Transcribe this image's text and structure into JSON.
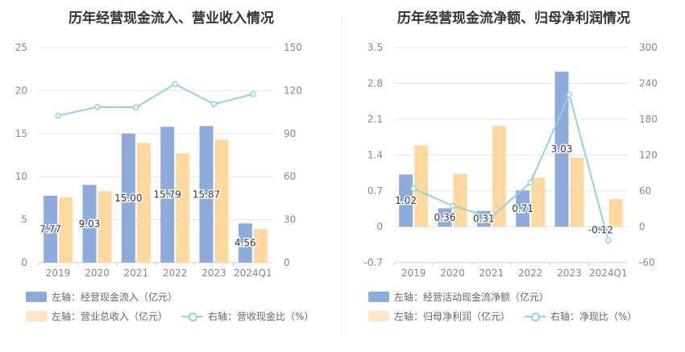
{
  "chart_data": [
    {
      "type": "bar",
      "title": "历年经营现金流入、营业收入情况",
      "categories": [
        "2019",
        "2020",
        "2021",
        "2022",
        "2023",
        "2024Q1"
      ],
      "left_axis": {
        "ylim": [
          0,
          25
        ],
        "ticks": [
          "0",
          "5",
          "10",
          "15",
          "20",
          "25"
        ]
      },
      "right_axis": {
        "ylim": [
          0,
          150
        ],
        "ticks": [
          "0",
          "30",
          "60",
          "90",
          "120",
          "150"
        ]
      },
      "series": [
        {
          "name": "左轴：经营现金流入（亿元）",
          "type": "bar",
          "axis": "left",
          "color": "#8eacdb",
          "values": [
            7.77,
            9.03,
            15.0,
            15.79,
            15.87,
            4.56
          ],
          "labels": [
            "7.77",
            "9.03",
            "15.00",
            "15.79",
            "15.87",
            "4.56"
          ]
        },
        {
          "name": "左轴：营业总收入（亿元）",
          "type": "bar",
          "axis": "left",
          "color": "#fdd9a0",
          "values": [
            7.6,
            8.3,
            13.9,
            12.7,
            14.3,
            3.9
          ]
        },
        {
          "name": "右轴：营收现金比（%）",
          "type": "line",
          "axis": "right",
          "color": "#8fd5d8",
          "values": [
            102.5,
            108.5,
            108.3,
            124.5,
            110.5,
            117.5
          ]
        }
      ]
    },
    {
      "type": "bar",
      "title": "历年经营现金流净额、归母净利润情况",
      "categories": [
        "2019",
        "2020",
        "2021",
        "2022",
        "2023",
        "2024Q1"
      ],
      "left_axis": {
        "ylim": [
          -0.7,
          3.5
        ],
        "ticks": [
          "-0.7",
          "0",
          "0.7",
          "1.4",
          "2.1",
          "2.8",
          "3.5"
        ]
      },
      "right_axis": {
        "ylim": [
          -60,
          300
        ],
        "ticks": [
          "-60",
          "0",
          "60",
          "120",
          "180",
          "240",
          "300"
        ]
      },
      "series": [
        {
          "name": "左轴：经营活动现金流净额（亿元）",
          "type": "bar",
          "axis": "left",
          "color": "#8eacdb",
          "values": [
            1.02,
            0.36,
            0.31,
            0.71,
            3.03,
            -0.12
          ],
          "labels": [
            "1.02",
            "0.36",
            "0.31",
            "0.71",
            "3.03",
            "-0.12"
          ]
        },
        {
          "name": "左轴：归母净利润（亿元）",
          "type": "bar",
          "axis": "left",
          "color": "#fdd9a0",
          "values": [
            1.59,
            1.03,
            1.97,
            0.96,
            1.35,
            0.54
          ]
        },
        {
          "name": "右轴：净现比（%）",
          "type": "line",
          "axis": "right",
          "color": "#8fd5d8",
          "values": [
            64,
            35,
            16,
            74,
            221,
            -23
          ]
        }
      ]
    }
  ],
  "legend": {
    "left": {
      "row1": [
        "左轴：经营现金流入（亿元）"
      ],
      "row2": [
        "左轴：营业总收入（亿元）",
        "右轴：营收现金比（%）"
      ]
    },
    "right": {
      "row1": [
        "左轴：经营活动现金流净额（亿元）"
      ],
      "row2": [
        "左轴：归母净利润（亿元）",
        "右轴：净现比（%）"
      ]
    }
  }
}
